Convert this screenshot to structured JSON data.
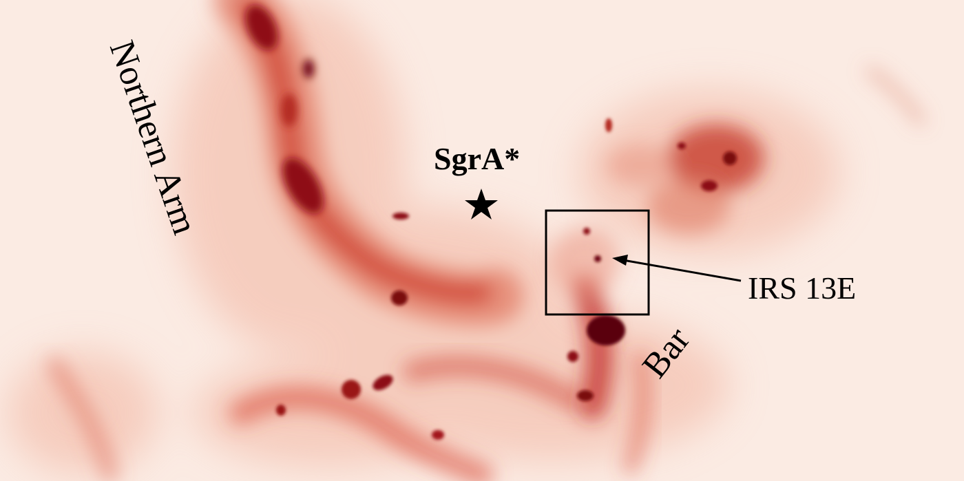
{
  "labels": {
    "northern_arm": "Northern Arm",
    "sgra": "SgrA*",
    "irs13e": "IRS 13E",
    "bar": "Bar"
  },
  "colors": {
    "background": "#fbebe3",
    "emission_faint": "#f2b49e",
    "emission_mid": "#d9503a",
    "emission_strong": "#a3131a",
    "emission_peak": "#5a0508",
    "annotation": "#000000"
  },
  "icons": {
    "sgra_marker": "star-icon",
    "irs_pointer": "arrow-icon"
  }
}
